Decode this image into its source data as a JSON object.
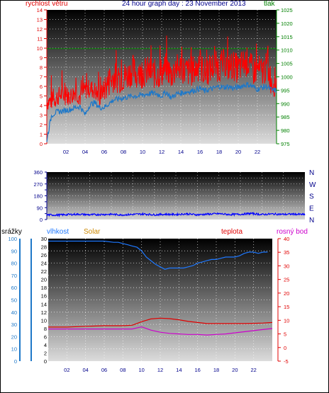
{
  "header": {
    "left_label": "rychlost větru",
    "title": "24 hour graph day : 23 November 2013",
    "right_label": "tlak"
  },
  "panel3_labels": {
    "rain": "srážky",
    "humidity": "vlhkost",
    "solar": "Solar",
    "temperature": "teplota",
    "dewpoint": "rosný bod"
  },
  "colors": {
    "wind_gust": "#ff0000",
    "wind_avg": "#1e78c8",
    "pressure": "#008000",
    "direction": "#0000ff",
    "humidity": "#1e78ff",
    "temperature": "#e00000",
    "dewpoint": "#cc00cc",
    "solar": "#cc8800",
    "rain_axis": "#1e78c8",
    "axis_dark_blue": "#00008b"
  },
  "chart_data": [
    {
      "type": "line",
      "title": "24 hour graph day : 23 November 2013",
      "x_ticks": [
        "02",
        "04",
        "06",
        "08",
        "10",
        "12",
        "14",
        "16",
        "18",
        "20",
        "22"
      ],
      "xlim": [
        0,
        24
      ],
      "left_axis": {
        "label": "rychlost větru",
        "lim": [
          0,
          14
        ],
        "ticks": [
          0,
          1,
          2,
          3,
          4,
          5,
          6,
          7,
          8,
          9,
          10,
          11,
          12,
          13,
          14
        ]
      },
      "right_axis": {
        "label": "tlak",
        "lim": [
          975,
          1025
        ],
        "ticks": [
          975,
          980,
          985,
          990,
          995,
          1000,
          1005,
          1010,
          1015,
          1020,
          1025
        ]
      },
      "series": [
        {
          "name": "gust",
          "axis": "left",
          "x": [
            0,
            0.5,
            1,
            1.5,
            2,
            2.5,
            3,
            3.5,
            4,
            4.5,
            5,
            5.5,
            6,
            6.5,
            7,
            7.5,
            8,
            8.5,
            9,
            9.5,
            10,
            10.5,
            11,
            11.5,
            12,
            12.5,
            13,
            13.5,
            14,
            14.5,
            15,
            15.5,
            16,
            16.5,
            17,
            17.5,
            18,
            18.5,
            19,
            19.5,
            20,
            20.5,
            21,
            21.5,
            22,
            22.5,
            23,
            23.5
          ],
          "values": [
            4.4,
            4.5,
            4.8,
            5.2,
            5.0,
            5.0,
            5.5,
            4.8,
            5.6,
            5.8,
            5.6,
            4.8,
            5.8,
            6.5,
            7.0,
            6.8,
            7.0,
            7.2,
            7.8,
            7.0,
            7.4,
            7.6,
            7.4,
            7.2,
            7.5,
            8.0,
            7.2,
            7.8,
            8.0,
            7.6,
            7.5,
            7.8,
            8.2,
            7.4,
            7.8,
            8.2,
            8.0,
            8.4,
            8.0,
            8.2,
            7.8,
            8.4,
            8.6,
            7.6,
            7.8,
            7.6,
            8.0,
            6.5
          ]
        },
        {
          "name": "average",
          "axis": "left",
          "x": [
            0,
            0.5,
            1,
            1.5,
            2,
            2.5,
            3,
            3.5,
            4,
            4.5,
            5,
            5.5,
            6,
            6.5,
            7,
            7.5,
            8,
            8.5,
            9,
            9.5,
            10,
            10.5,
            11,
            11.5,
            12,
            12.5,
            13,
            13.5,
            14,
            14.5,
            15,
            15.5,
            16,
            16.5,
            17,
            17.5,
            18,
            18.5,
            19,
            19.5,
            20,
            20.5,
            21,
            21.5,
            22,
            22.5,
            23,
            23.5
          ],
          "values": [
            0.4,
            3.0,
            3.3,
            3.4,
            3.5,
            3.6,
            3.8,
            3.9,
            3.0,
            4.1,
            4.3,
            3.8,
            3.8,
            4.2,
            4.6,
            4.7,
            4.8,
            4.9,
            5.0,
            5.0,
            5.1,
            5.2,
            5.3,
            5.2,
            5.0,
            5.4,
            4.8,
            5.2,
            5.3,
            5.4,
            5.5,
            5.6,
            5.8,
            5.5,
            5.7,
            5.8,
            6.0,
            5.9,
            6.0,
            5.8,
            5.9,
            6.1,
            6.2,
            6.0,
            5.7,
            5.9,
            6.0,
            5.6
          ]
        },
        {
          "name": "pressure",
          "axis": "right",
          "x": [
            0,
            24
          ],
          "values": [
            1010.5,
            1010.5
          ]
        }
      ]
    },
    {
      "type": "scatter",
      "x_ticks": [],
      "xlim": [
        0,
        24
      ],
      "left_axis": {
        "lim": [
          0,
          360
        ],
        "ticks": [
          0,
          45,
          90,
          135,
          180,
          225,
          270,
          315,
          360
        ],
        "tick_labels": [
          "0",
          "90",
          "180",
          "270",
          "360"
        ]
      },
      "right_axis": {
        "tick_labels": [
          "N",
          "W",
          "S",
          "E",
          "N"
        ]
      },
      "series": [
        {
          "name": "direction",
          "x": [
            0,
            1,
            2,
            3,
            4,
            5,
            6,
            7,
            8,
            9,
            10,
            11,
            12,
            13,
            14,
            15,
            16,
            17,
            18,
            19,
            20,
            21,
            22,
            23,
            24
          ],
          "values": [
            35,
            34,
            38,
            40,
            36,
            38,
            40,
            35,
            39,
            42,
            36,
            40,
            38,
            43,
            36,
            41,
            44,
            38,
            40,
            46,
            38,
            42,
            39,
            41,
            37
          ]
        }
      ]
    },
    {
      "type": "line",
      "x_ticks": [
        "02",
        "04",
        "06",
        "08",
        "10",
        "12",
        "14",
        "16",
        "18",
        "20",
        "22"
      ],
      "xlim": [
        0,
        24
      ],
      "rain_axis": {
        "label": "srážky",
        "lim": [
          0,
          30
        ],
        "ticks": [
          0,
          2,
          4,
          6,
          8,
          10,
          12,
          14,
          16,
          18,
          20,
          22,
          24,
          26,
          28,
          30
        ]
      },
      "humidity_axis": {
        "label": "vlhkost",
        "lim": [
          0,
          100
        ],
        "ticks": [
          0,
          10,
          20,
          30,
          40,
          50,
          60,
          70,
          80,
          90,
          100
        ]
      },
      "temperature_axis": {
        "label": "teplota",
        "lim": [
          -5,
          40
        ],
        "ticks": [
          -5,
          0,
          5,
          10,
          15,
          20,
          25,
          30,
          35,
          40
        ]
      },
      "series": [
        {
          "name": "humidity",
          "axis": "humidity",
          "x": [
            0,
            1,
            2,
            3,
            4,
            5,
            6,
            7,
            7.5,
            8,
            8.5,
            9,
            9.5,
            10,
            10.5,
            11,
            11.5,
            12,
            12.5,
            13,
            13.5,
            14,
            14.5,
            15,
            15.5,
            16,
            16.5,
            17,
            17.5,
            18,
            18.5,
            19,
            19.5,
            20,
            20.5,
            21,
            21.5,
            22,
            22.5,
            23,
            23.5
          ],
          "values": [
            98,
            98,
            98,
            98,
            98,
            98,
            98,
            97,
            97,
            96,
            95,
            94,
            93,
            90,
            85,
            82,
            79,
            77,
            75,
            76,
            76,
            76,
            76,
            77,
            78,
            80,
            81,
            82,
            83,
            83,
            84,
            85,
            85,
            85,
            86,
            88,
            89,
            89,
            88,
            89,
            89
          ]
        },
        {
          "name": "temperature",
          "axis": "temperature",
          "x": [
            0,
            2,
            4,
            6,
            8,
            9,
            10,
            11,
            12,
            13,
            14,
            15,
            16,
            17,
            18,
            19,
            20,
            21,
            22,
            23,
            24
          ],
          "values": [
            7.5,
            7.5,
            7.8,
            8.0,
            8.0,
            8.2,
            9.5,
            10.5,
            10.8,
            10.6,
            10.2,
            9.6,
            9.2,
            8.8,
            8.8,
            8.8,
            8.8,
            8.8,
            8.9,
            9.0,
            9.2
          ]
        },
        {
          "name": "dewpoint",
          "axis": "temperature",
          "x": [
            0,
            2,
            4,
            6,
            7,
            8,
            9,
            10,
            11,
            12,
            13,
            14,
            15,
            16,
            17,
            18,
            19,
            20,
            21,
            22,
            23,
            24
          ],
          "values": [
            6.8,
            6.8,
            6.8,
            6.8,
            6.8,
            6.8,
            6.8,
            7.6,
            6.4,
            5.6,
            5.2,
            5.0,
            4.8,
            4.8,
            4.6,
            4.8,
            5.0,
            5.4,
            5.8,
            6.2,
            6.6,
            7.0
          ]
        }
      ]
    }
  ]
}
